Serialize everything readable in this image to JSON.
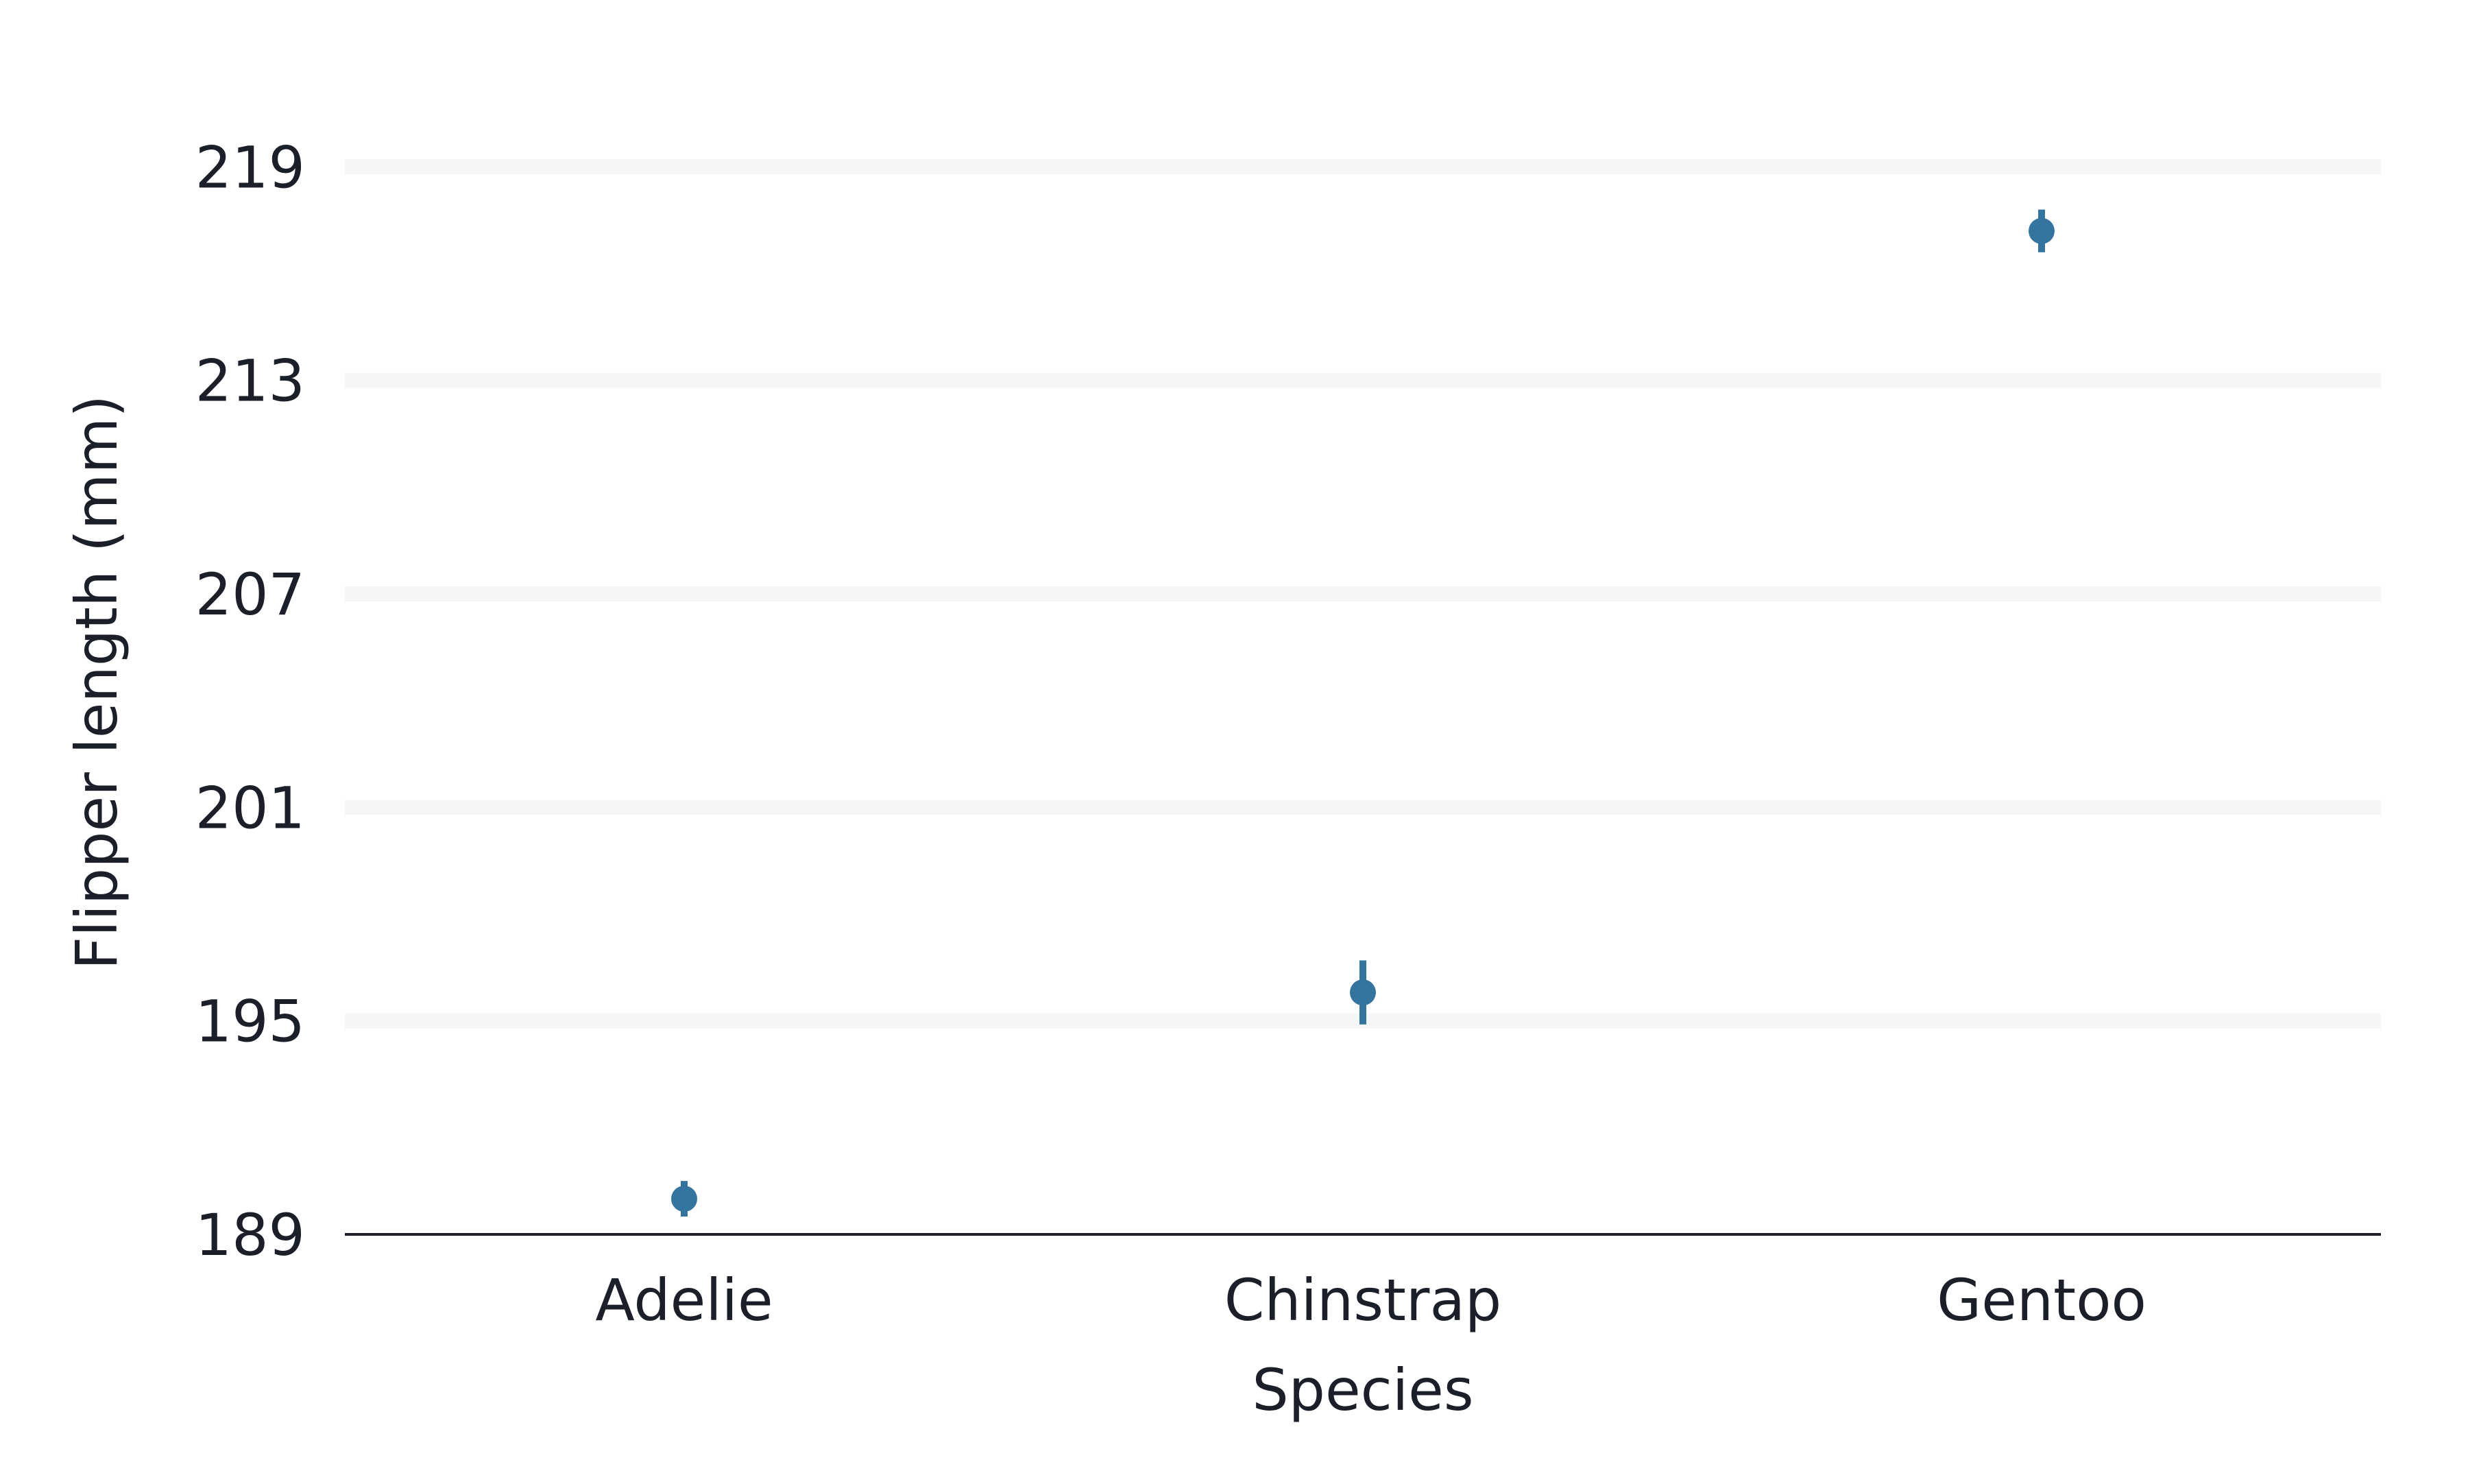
{
  "chart_data": {
    "type": "scatter",
    "subtype": "point-with-error-bars",
    "title": "",
    "xlabel": "Species",
    "ylabel": "Flipper length (mm)",
    "categories": [
      "Adelie",
      "Chinstrap",
      "Gentoo"
    ],
    "series": [
      {
        "values": [
          190.0,
          195.8,
          217.2
        ],
        "error_low": [
          189.5,
          194.9,
          216.6
        ],
        "error_high": [
          190.5,
          196.7,
          217.8
        ]
      }
    ],
    "y_ticks": [
      189,
      195,
      201,
      207,
      213,
      219
    ],
    "ylim": [
      189,
      220.8
    ],
    "grid": "horizontal",
    "legend": "none",
    "colors": {
      "point": "#33759f",
      "grid": "#f5f6f8",
      "axis": "#1b1f2a",
      "text": "#1b1f2a"
    }
  }
}
